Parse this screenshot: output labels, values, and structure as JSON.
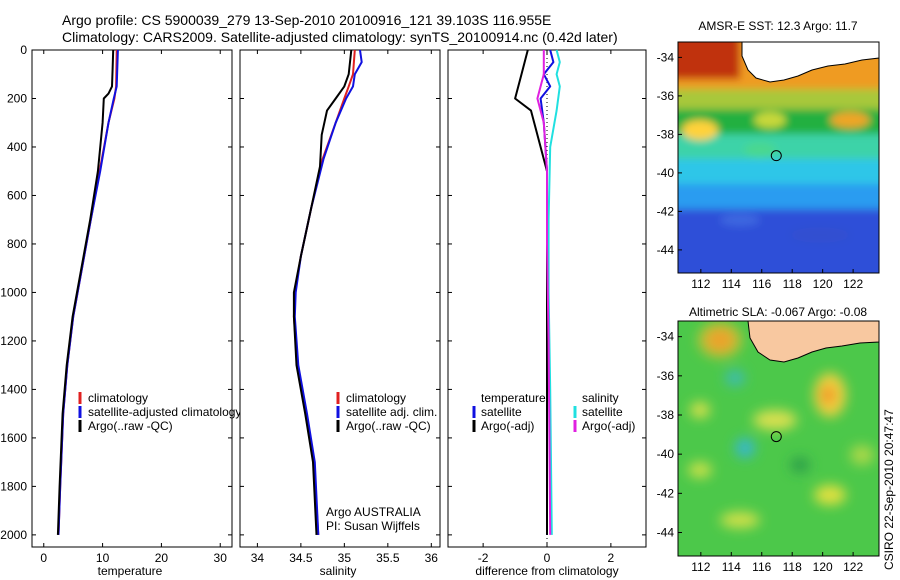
{
  "header": {
    "title_line1": "Argo profile: CS 5900039_279 13-Sep-2010 20100916_121 39.103S 116.955E",
    "title_line2": "Climatology: CARS2009. Satellite-adjusted climatology: synTS_20100914.nc (0.42d later)"
  },
  "credit": "CSIRO 22-Sep-2010 20:47:47",
  "chart_data": [
    {
      "type": "line",
      "xlabel": "temperature",
      "ylabel": "",
      "xlim": [
        -2,
        32
      ],
      "ylim": [
        2050,
        0
      ],
      "xticks": [
        0,
        10,
        20,
        30
      ],
      "yticks": [
        0,
        200,
        400,
        600,
        800,
        1000,
        1200,
        1400,
        1600,
        1800,
        2000
      ],
      "legend": {
        "placement": "lower-middle",
        "entries": [
          {
            "label": "climatology",
            "color": "#e02020"
          },
          {
            "label": "satellite-adjusted climatology",
            "color": "#1010e0"
          },
          {
            "label": "Argo(..raw -QC)",
            "color": "#000000"
          }
        ]
      },
      "series": [
        {
          "color": "#e02020",
          "points": [
            [
              12.4,
              0
            ],
            [
              12.3,
              150
            ],
            [
              12.0,
              200
            ],
            [
              11.0,
              300
            ],
            [
              9.5,
              500
            ],
            [
              8.0,
              700
            ],
            [
              6.5,
              900
            ],
            [
              5.0,
              1100
            ],
            [
              4.0,
              1300
            ],
            [
              3.3,
              1500
            ],
            [
              2.8,
              1800
            ],
            [
              2.5,
              2000
            ]
          ]
        },
        {
          "color": "#1010e0",
          "points": [
            [
              12.6,
              0
            ],
            [
              12.4,
              150
            ],
            [
              11.9,
              200
            ],
            [
              11.0,
              300
            ],
            [
              9.6,
              500
            ],
            [
              8.0,
              700
            ],
            [
              6.5,
              900
            ],
            [
              5.0,
              1100
            ],
            [
              4.0,
              1300
            ],
            [
              3.3,
              1500
            ],
            [
              2.8,
              1800
            ],
            [
              2.5,
              2000
            ]
          ]
        },
        {
          "color": "#000000",
          "points": [
            [
              11.8,
              0
            ],
            [
              11.7,
              80
            ],
            [
              11.6,
              150
            ],
            [
              11.0,
              180
            ],
            [
              10.2,
              200
            ],
            [
              10.0,
              300
            ],
            [
              9.2,
              500
            ],
            [
              7.9,
              700
            ],
            [
              6.4,
              900
            ],
            [
              4.9,
              1100
            ],
            [
              3.9,
              1300
            ],
            [
              3.2,
              1500
            ],
            [
              2.7,
              1800
            ],
            [
              2.4,
              2000
            ]
          ]
        }
      ]
    },
    {
      "type": "line",
      "xlabel": "salinity",
      "ylabel": "",
      "xlim": [
        33.8,
        36.1
      ],
      "ylim": [
        2050,
        0
      ],
      "xticks": [
        34,
        34.5,
        35,
        35.5,
        36
      ],
      "legend": {
        "placement": "lower-middle",
        "entries": [
          {
            "label": "climatology",
            "color": "#e02020"
          },
          {
            "label": "satellite adj. clim.",
            "color": "#1010e0"
          },
          {
            "label": "Argo(..raw -QC)",
            "color": "#000000"
          }
        ]
      },
      "annotations": [
        "Argo AUSTRALIA",
        "PI: Susan Wijffels"
      ],
      "series": [
        {
          "color": "#e02020",
          "points": [
            [
              35.12,
              0
            ],
            [
              35.1,
              100
            ],
            [
              35.05,
              150
            ],
            [
              35.0,
              200
            ],
            [
              34.9,
              300
            ],
            [
              34.75,
              450
            ],
            [
              34.62,
              650
            ],
            [
              34.5,
              850
            ],
            [
              34.43,
              1000
            ],
            [
              34.42,
              1100
            ],
            [
              34.46,
              1300
            ],
            [
              34.56,
              1500
            ],
            [
              34.65,
              1700
            ],
            [
              34.7,
              2000
            ]
          ]
        },
        {
          "color": "#1010e0",
          "points": [
            [
              35.18,
              0
            ],
            [
              35.2,
              50
            ],
            [
              35.12,
              100
            ],
            [
              35.1,
              150
            ],
            [
              35.02,
              200
            ],
            [
              34.9,
              300
            ],
            [
              34.76,
              450
            ],
            [
              34.62,
              650
            ],
            [
              34.5,
              850
            ],
            [
              34.44,
              1000
            ],
            [
              34.43,
              1100
            ],
            [
              34.47,
              1300
            ],
            [
              34.57,
              1500
            ],
            [
              34.66,
              1700
            ],
            [
              34.7,
              2000
            ]
          ]
        },
        {
          "color": "#000000",
          "points": [
            [
              35.08,
              0
            ],
            [
              35.05,
              100
            ],
            [
              35.0,
              150
            ],
            [
              34.9,
              200
            ],
            [
              34.8,
              250
            ],
            [
              34.74,
              350
            ],
            [
              34.72,
              480
            ],
            [
              34.62,
              650
            ],
            [
              34.5,
              850
            ],
            [
              34.42,
              1000
            ],
            [
              34.42,
              1100
            ],
            [
              34.45,
              1300
            ],
            [
              34.55,
              1500
            ],
            [
              34.64,
              1700
            ],
            [
              34.68,
              2000
            ]
          ]
        }
      ]
    },
    {
      "type": "line",
      "xlabel": "difference from climatology",
      "ylabel": "",
      "xlim": [
        -3.1,
        3.1
      ],
      "ylim": [
        2050,
        0
      ],
      "xticks": [
        -2,
        0,
        2
      ],
      "legend": {
        "placement": "lower-middle",
        "entries": [
          {
            "label": "temperature",
            "color": ""
          },
          {
            "label": "satellite",
            "color": "#1010e0"
          },
          {
            "label": "Argo(-adj)",
            "color": "#000000"
          },
          {
            "label": "salinity",
            "color": ""
          },
          {
            "label": "satellite",
            "color": "#20e0e0"
          },
          {
            "label": "Argo(-adj)",
            "color": "#e020e0"
          }
        ]
      },
      "series": [
        {
          "color": "#1010e0",
          "points": [
            [
              0.1,
              0
            ],
            [
              0.2,
              50
            ],
            [
              -0.1,
              100
            ],
            [
              0.1,
              150
            ],
            [
              -0.2,
              200
            ],
            [
              -0.1,
              300
            ],
            [
              0.0,
              500
            ],
            [
              0.0,
              800
            ],
            [
              0.0,
              1200
            ],
            [
              0.0,
              2000
            ]
          ]
        },
        {
          "color": "#000000",
          "points": [
            [
              -0.6,
              0
            ],
            [
              -0.8,
              100
            ],
            [
              -1.0,
              200
            ],
            [
              -0.5,
              250
            ],
            [
              -0.4,
              300
            ],
            [
              -0.2,
              400
            ],
            [
              0.0,
              500
            ],
            [
              0.0,
              800
            ],
            [
              0.0,
              1200
            ],
            [
              0.0,
              2000
            ]
          ]
        },
        {
          "color": "#20e0e0",
          "points": [
            [
              0.3,
              0
            ],
            [
              0.4,
              50
            ],
            [
              0.3,
              100
            ],
            [
              0.4,
              150
            ],
            [
              0.3,
              250
            ],
            [
              0.1,
              400
            ],
            [
              0.05,
              700
            ],
            [
              0.05,
              1000
            ],
            [
              0.1,
              1400
            ],
            [
              0.15,
              2000
            ]
          ]
        },
        {
          "color": "#e020e0",
          "points": [
            [
              -0.1,
              0
            ],
            [
              -0.1,
              100
            ],
            [
              -0.3,
              200
            ],
            [
              -0.1,
              300
            ],
            [
              0.0,
              500
            ],
            [
              0.0,
              800
            ],
            [
              0.05,
              1200
            ],
            [
              0.1,
              2000
            ]
          ]
        }
      ]
    },
    {
      "type": "heatmap",
      "title": "AMSR-E SST: 12.3 Argo: 11.7",
      "xlim": [
        110.5,
        123.7
      ],
      "ylim": [
        -45.2,
        -33.2
      ],
      "xticks": [
        112,
        114,
        116,
        118,
        120,
        122
      ],
      "yticks": [
        -34,
        -36,
        -38,
        -40,
        -42,
        -44
      ],
      "marker": {
        "x": 116.955,
        "y": -39.103
      }
    },
    {
      "type": "heatmap",
      "title": "Altimetric SLA: -0.067 Argo: -0.08",
      "xlim": [
        110.5,
        123.7
      ],
      "ylim": [
        -45.2,
        -33.2
      ],
      "xticks": [
        112,
        114,
        116,
        118,
        120,
        122
      ],
      "yticks": [
        -34,
        -36,
        -38,
        -40,
        -42,
        -44
      ],
      "marker": {
        "x": 116.955,
        "y": -39.103
      }
    }
  ]
}
